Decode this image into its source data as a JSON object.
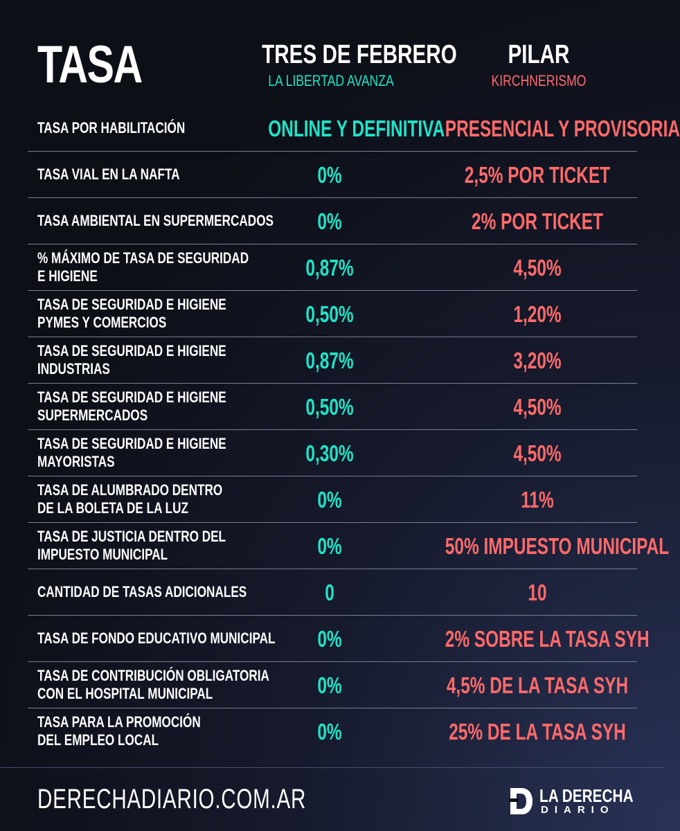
{
  "header": {
    "title": "TASA",
    "left_column": {
      "name": "TRES DE FEBRERO",
      "party": "LA LIBERTAD AVANZA"
    },
    "right_column": {
      "name": "PILAR",
      "party": "KIRCHNERISMO"
    }
  },
  "rows": [
    {
      "label_1": "TASA POR HABILITACIÓN",
      "label_2": "",
      "left": "ONLINE Y DEFINITIVA",
      "right": "PRESENCIAL Y PROVISORIA"
    },
    {
      "label_1": "TASA VIAL EN LA NAFTA",
      "label_2": "",
      "left": "0%",
      "right": "2,5% POR TICKET"
    },
    {
      "label_1": "TASA AMBIENTAL EN SUPERMERCADOS",
      "label_2": "",
      "left": "0%",
      "right": "2% POR TICKET"
    },
    {
      "label_1": "% MÁXIMO DE TASA DE SEGURIDAD",
      "label_2": "E HIGIENE",
      "left": "0,87%",
      "right": "4,50%"
    },
    {
      "label_1": "TASA DE SEGURIDAD E HIGIENE",
      "label_2": "PYMES Y COMERCIOS",
      "left": "0,50%",
      "right": "1,20%"
    },
    {
      "label_1": "TASA DE SEGURIDAD E HIGIENE",
      "label_2": "INDUSTRIAS",
      "left": "0,87%",
      "right": "3,20%"
    },
    {
      "label_1": "TASA DE SEGURIDAD E HIGIENE",
      "label_2": "SUPERMERCADOS",
      "left": "0,50%",
      "right": "4,50%"
    },
    {
      "label_1": "TASA DE SEGURIDAD E HIGIENE",
      "label_2": "MAYORISTAS",
      "left": "0,30%",
      "right": "4,50%"
    },
    {
      "label_1": "TASA DE ALUMBRADO DENTRO",
      "label_2": "DE LA BOLETA DE LA LUZ",
      "left": "0%",
      "right": "11%"
    },
    {
      "label_1": "TASA DE JUSTICIA DENTRO DEL",
      "label_2": "IMPUESTO MUNICIPAL",
      "left": "0%",
      "right": "50% IMPUESTO MUNICIPAL"
    },
    {
      "label_1": "CANTIDAD DE TASAS ADICIONALES",
      "label_2": "",
      "left": "0",
      "right": "10"
    },
    {
      "label_1": "TASA DE FONDO EDUCATIVO MUNICIPAL",
      "label_2": "",
      "left": "0%",
      "right": "2% SOBRE LA TASA SYH"
    },
    {
      "label_1": "TASA DE CONTRIBUCIÓN OBLIGATORIA",
      "label_2": "CON EL HOSPITAL MUNICIPAL",
      "left": "0%",
      "right": "4,5% DE LA TASA SYH"
    },
    {
      "label_1": "TASA PARA LA PROMOCIÓN",
      "label_2": "DEL EMPLEO LOCAL",
      "left": "0%",
      "right": "25% DE LA TASA SYH"
    }
  ],
  "footer": {
    "url": "DERECHADIARIO.COM.AR",
    "logo_line1": "LA DERECHA",
    "logo_line2": "DIARIO"
  },
  "colors": {
    "left_accent": "#1fe3c8",
    "right_accent": "#ff6a6a",
    "background": "#0d0f17"
  }
}
